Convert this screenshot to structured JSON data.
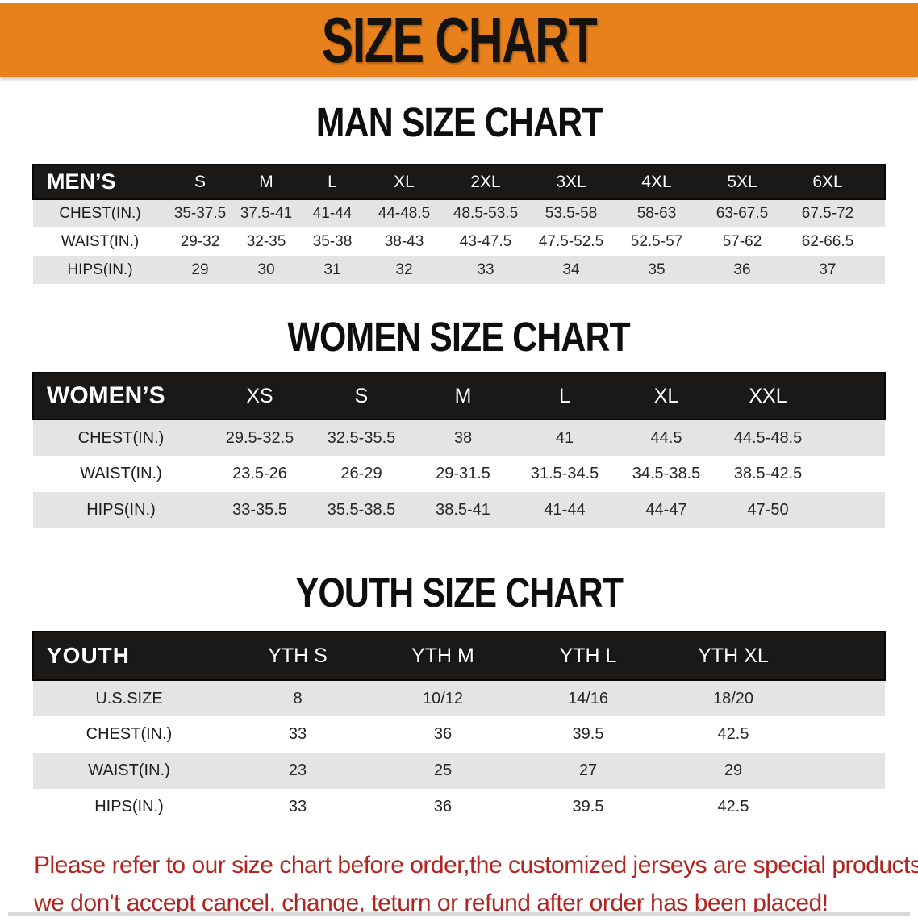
{
  "banner": {
    "title": "SIZE CHART"
  },
  "colors": {
    "banner-bg": "#e8811c",
    "header-bg": "#1b1918",
    "stripe": "#e4e4e4",
    "note-red": "#b1241f"
  },
  "sections": [
    {
      "heading": "MAN SIZE CHART",
      "table": {
        "header_label": "MEN’S",
        "columns": [
          "S",
          "M",
          "L",
          "XL",
          "2XL",
          "3XL",
          "4XL",
          "5XL",
          "6XL"
        ],
        "rows": [
          {
            "label": "CHEST(IN.)",
            "values": [
              "35-37.5",
              "37.5-41",
              "41-44",
              "44-48.5",
              "48.5-53.5",
              "53.5-58",
              "58-63",
              "63-67.5",
              "67.5-72"
            ]
          },
          {
            "label": "WAIST(IN.)",
            "values": [
              "29-32",
              "32-35",
              "35-38",
              "38-43",
              "43-47.5",
              "47.5-52.5",
              "52.5-57",
              "57-62",
              "62-66.5"
            ]
          },
          {
            "label": "HIPS(IN.)",
            "values": [
              "29",
              "30",
              "31",
              "32",
              "33",
              "34",
              "35",
              "36",
              "37"
            ]
          }
        ]
      }
    },
    {
      "heading": "WOMEN SIZE CHART",
      "table": {
        "header_label": "WOMEN’S",
        "columns": [
          "XS",
          "S",
          "M",
          "L",
          "XL",
          "XXL"
        ],
        "rows": [
          {
            "label": "CHEST(IN.)",
            "values": [
              "29.5-32.5",
              "32.5-35.5",
              "38",
              "41",
              "44.5",
              "44.5-48.5"
            ]
          },
          {
            "label": "WAIST(IN.)",
            "values": [
              "23.5-26",
              "26-29",
              "29-31.5",
              "31.5-34.5",
              "34.5-38.5",
              "38.5-42.5"
            ]
          },
          {
            "label": "HIPS(IN.)",
            "values": [
              "33-35.5",
              "35.5-38.5",
              "38.5-41",
              "41-44",
              "44-47",
              "47-50"
            ]
          }
        ]
      }
    },
    {
      "heading": "YOUTH SIZE CHART",
      "table": {
        "header_label": "YOUTH",
        "columns": [
          "YTH S",
          "YTH M",
          "YTH L",
          "YTH XL"
        ],
        "rows": [
          {
            "label": "U.S.SIZE",
            "values": [
              "8",
              "10/12",
              "14/16",
              "18/20"
            ]
          },
          {
            "label": "CHEST(IN.)",
            "values": [
              "33",
              "36",
              "39.5",
              "42.5"
            ]
          },
          {
            "label": "WAIST(IN.)",
            "values": [
              "23",
              "25",
              "27",
              "29"
            ]
          },
          {
            "label": "HIPS(IN.)",
            "values": [
              "33",
              "36",
              "39.5",
              "42.5"
            ]
          }
        ]
      }
    }
  ],
  "note": {
    "line1": "Please refer to our size chart before order,the customized jerseys are special products,",
    "line2": "we don't accept cancel, change, teturn or refund after order has been placed!"
  }
}
